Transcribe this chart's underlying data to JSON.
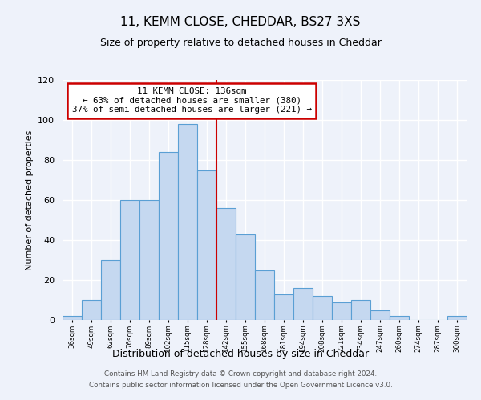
{
  "title": "11, KEMM CLOSE, CHEDDAR, BS27 3XS",
  "subtitle": "Size of property relative to detached houses in Cheddar",
  "xlabel": "Distribution of detached houses by size in Cheddar",
  "ylabel": "Number of detached properties",
  "bin_labels": [
    "36sqm",
    "49sqm",
    "62sqm",
    "76sqm",
    "89sqm",
    "102sqm",
    "115sqm",
    "128sqm",
    "142sqm",
    "155sqm",
    "168sqm",
    "181sqm",
    "194sqm",
    "208sqm",
    "221sqm",
    "234sqm",
    "247sqm",
    "260sqm",
    "274sqm",
    "287sqm",
    "300sqm"
  ],
  "bar_heights": [
    2,
    10,
    30,
    60,
    60,
    84,
    98,
    75,
    56,
    43,
    25,
    13,
    16,
    12,
    9,
    10,
    5,
    2,
    0,
    0,
    2
  ],
  "bar_color": "#c5d8f0",
  "bar_edge_color": "#5a9fd4",
  "annotation_title": "11 KEMM CLOSE: 136sqm",
  "annotation_line1": "← 63% of detached houses are smaller (380)",
  "annotation_line2": "37% of semi-detached houses are larger (221) →",
  "annotation_box_color": "#ffffff",
  "annotation_box_edge": "#cc0000",
  "vline_color": "#cc0000",
  "ylim": [
    0,
    120
  ],
  "yticks": [
    0,
    20,
    40,
    60,
    80,
    100,
    120
  ],
  "footer1": "Contains HM Land Registry data © Crown copyright and database right 2024.",
  "footer2": "Contains public sector information licensed under the Open Government Licence v3.0.",
  "background_color": "#eef2fa"
}
